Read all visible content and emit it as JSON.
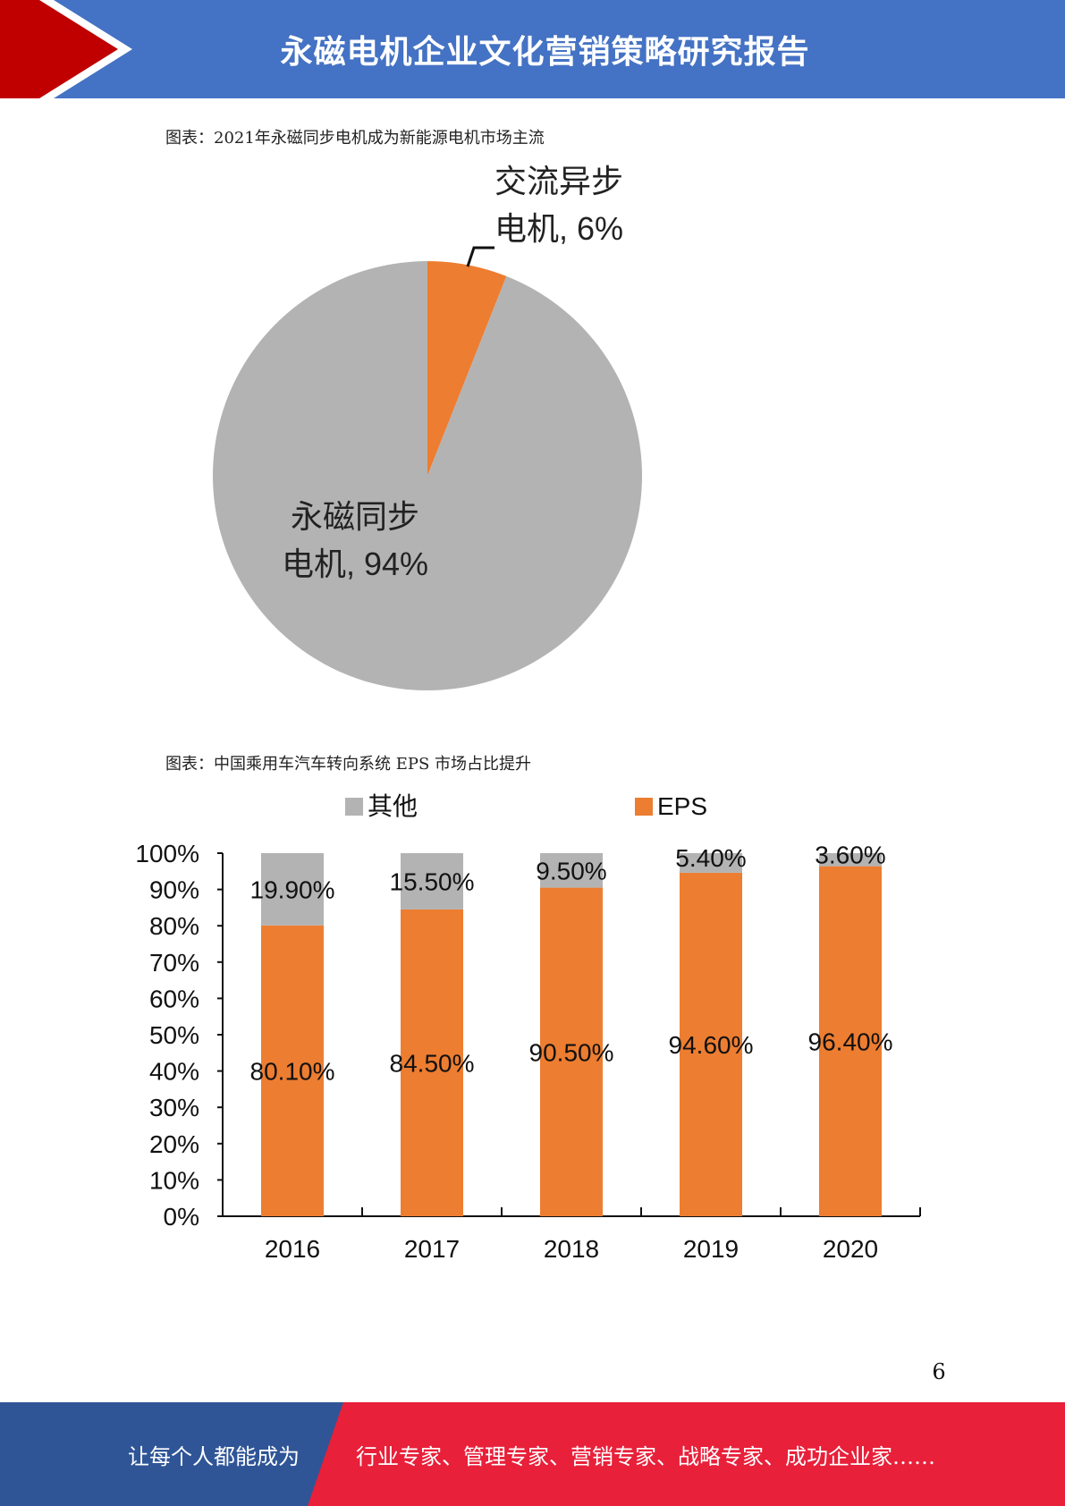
{
  "header": {
    "title": "永磁电机企业文化营销策略研究报告",
    "colors": {
      "bar": "#4472c4",
      "accent": "#c00000"
    }
  },
  "captions": {
    "pie": "图表：2021年永磁同步电机成为新能源电机市场主流",
    "bar": "图表：中国乘用车汽车转向系统 EPS 市场占比提升"
  },
  "chart_data": [
    {
      "type": "pie",
      "slices": [
        {
          "label_line1": "交流异步",
          "label_line2": "电机, 6%",
          "value": 6,
          "color": "#ed7d31"
        },
        {
          "label_line1": "永磁同步",
          "label_line2": "电机, 94%",
          "value": 94,
          "color": "#b3b3b3"
        }
      ]
    },
    {
      "type": "bar",
      "stacked": true,
      "categories": [
        "2016",
        "2017",
        "2018",
        "2019",
        "2020"
      ],
      "series": [
        {
          "name": "EPS",
          "color": "#ed7d31",
          "values": [
            80.1,
            84.5,
            90.5,
            94.6,
            96.4
          ],
          "labels": [
            "80.10%",
            "84.50%",
            "90.50%",
            "94.60%",
            "96.40%"
          ]
        },
        {
          "name": "其他",
          "color": "#b3b3b3",
          "values": [
            19.9,
            15.5,
            9.5,
            5.4,
            3.6
          ],
          "labels": [
            "19.90%",
            "15.50%",
            "9.50%",
            "5.40%",
            "3.60%"
          ]
        }
      ],
      "ylim": [
        0,
        100
      ],
      "yticks": [
        "0%",
        "10%",
        "20%",
        "30%",
        "40%",
        "50%",
        "60%",
        "70%",
        "80%",
        "90%",
        "100%"
      ],
      "legend_position": "top"
    }
  ],
  "page_number": "6",
  "footer": {
    "left": "让每个人都能成为",
    "right": "行业专家、管理专家、营销专家、战略专家、成功企业家……",
    "colors": {
      "left_bg": "#2f5597",
      "right_bg": "#e8203a"
    }
  }
}
